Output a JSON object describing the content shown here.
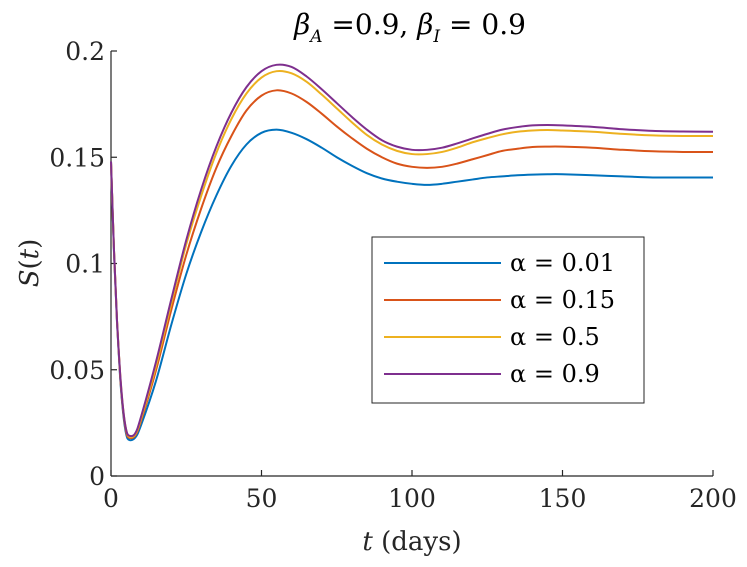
{
  "chart_data": {
    "type": "line",
    "title": {
      "beta_a_symbol": "β",
      "beta_a_sub": "A",
      "beta_a_eq": " =0.9, ",
      "beta_i_symbol": "β",
      "beta_i_sub": "I",
      "beta_i_eq": " = 0.9"
    },
    "xlabel": {
      "var": "t",
      "rest": " (days)"
    },
    "ylabel": {
      "fn": "S",
      "open": "(",
      "var": "t",
      "close": ")"
    },
    "xlim": [
      0,
      200
    ],
    "ylim": [
      0,
      0.2
    ],
    "xticks": [
      0,
      50,
      100,
      150,
      200
    ],
    "xtick_labels": [
      "0",
      "50",
      "100",
      "150",
      "200"
    ],
    "yticks": [
      0,
      0.05,
      0.1,
      0.15,
      0.2
    ],
    "ytick_labels": [
      "0",
      "0.05",
      "0.1",
      "0.15",
      "0.2"
    ],
    "grid": false,
    "legend_position": "center-right",
    "x": [
      0,
      1,
      2,
      3,
      4,
      5,
      6,
      8,
      10,
      15,
      20,
      25,
      30,
      35,
      40,
      45,
      50,
      55,
      60,
      65,
      70,
      75,
      80,
      85,
      90,
      95,
      100,
      105,
      110,
      115,
      120,
      125,
      130,
      135,
      140,
      145,
      150,
      160,
      170,
      180,
      190,
      200
    ],
    "series": [
      {
        "name": "α = 0.01",
        "color": "#0072BD",
        "values": [
          0.148,
          0.105,
          0.072,
          0.047,
          0.03,
          0.02,
          0.017,
          0.018,
          0.024,
          0.045,
          0.071,
          0.095,
          0.115,
          0.132,
          0.146,
          0.156,
          0.1615,
          0.163,
          0.1615,
          0.1585,
          0.1545,
          0.15,
          0.146,
          0.1425,
          0.14,
          0.1385,
          0.1375,
          0.137,
          0.1375,
          0.1385,
          0.1395,
          0.1405,
          0.141,
          0.1415,
          0.1418,
          0.142,
          0.142,
          0.1415,
          0.141,
          0.1405,
          0.1405,
          0.1405
        ]
      },
      {
        "name": "α = 0.15",
        "color": "#D95319",
        "values": [
          0.148,
          0.106,
          0.073,
          0.048,
          0.031,
          0.021,
          0.018,
          0.019,
          0.026,
          0.05,
          0.078,
          0.104,
          0.126,
          0.145,
          0.16,
          0.172,
          0.179,
          0.1815,
          0.18,
          0.176,
          0.1705,
          0.1645,
          0.159,
          0.154,
          0.15,
          0.147,
          0.1455,
          0.145,
          0.1455,
          0.147,
          0.149,
          0.151,
          0.153,
          0.154,
          0.1548,
          0.155,
          0.155,
          0.1545,
          0.1535,
          0.1528,
          0.1525,
          0.1525
        ]
      },
      {
        "name": "α = 0.5",
        "color": "#EDB120",
        "values": [
          0.148,
          0.106,
          0.073,
          0.049,
          0.032,
          0.022,
          0.0185,
          0.0195,
          0.027,
          0.052,
          0.081,
          0.109,
          0.132,
          0.152,
          0.168,
          0.18,
          0.1875,
          0.1905,
          0.1895,
          0.1855,
          0.1795,
          0.173,
          0.1665,
          0.1605,
          0.156,
          0.153,
          0.1515,
          0.1515,
          0.1525,
          0.1545,
          0.157,
          0.159,
          0.1608,
          0.162,
          0.1626,
          0.1628,
          0.1626,
          0.162,
          0.161,
          0.1603,
          0.16,
          0.16
        ]
      },
      {
        "name": "α = 0.9",
        "color": "#7E2F8E",
        "values": [
          0.148,
          0.106,
          0.073,
          0.049,
          0.032,
          0.022,
          0.019,
          0.02,
          0.028,
          0.054,
          0.083,
          0.111,
          0.135,
          0.155,
          0.171,
          0.183,
          0.1905,
          0.1935,
          0.1925,
          0.188,
          0.182,
          0.1755,
          0.169,
          0.163,
          0.158,
          0.155,
          0.1535,
          0.1535,
          0.1545,
          0.1565,
          0.1588,
          0.161,
          0.163,
          0.1642,
          0.165,
          0.1652,
          0.165,
          0.1643,
          0.1632,
          0.1624,
          0.1621,
          0.162
        ]
      }
    ]
  }
}
